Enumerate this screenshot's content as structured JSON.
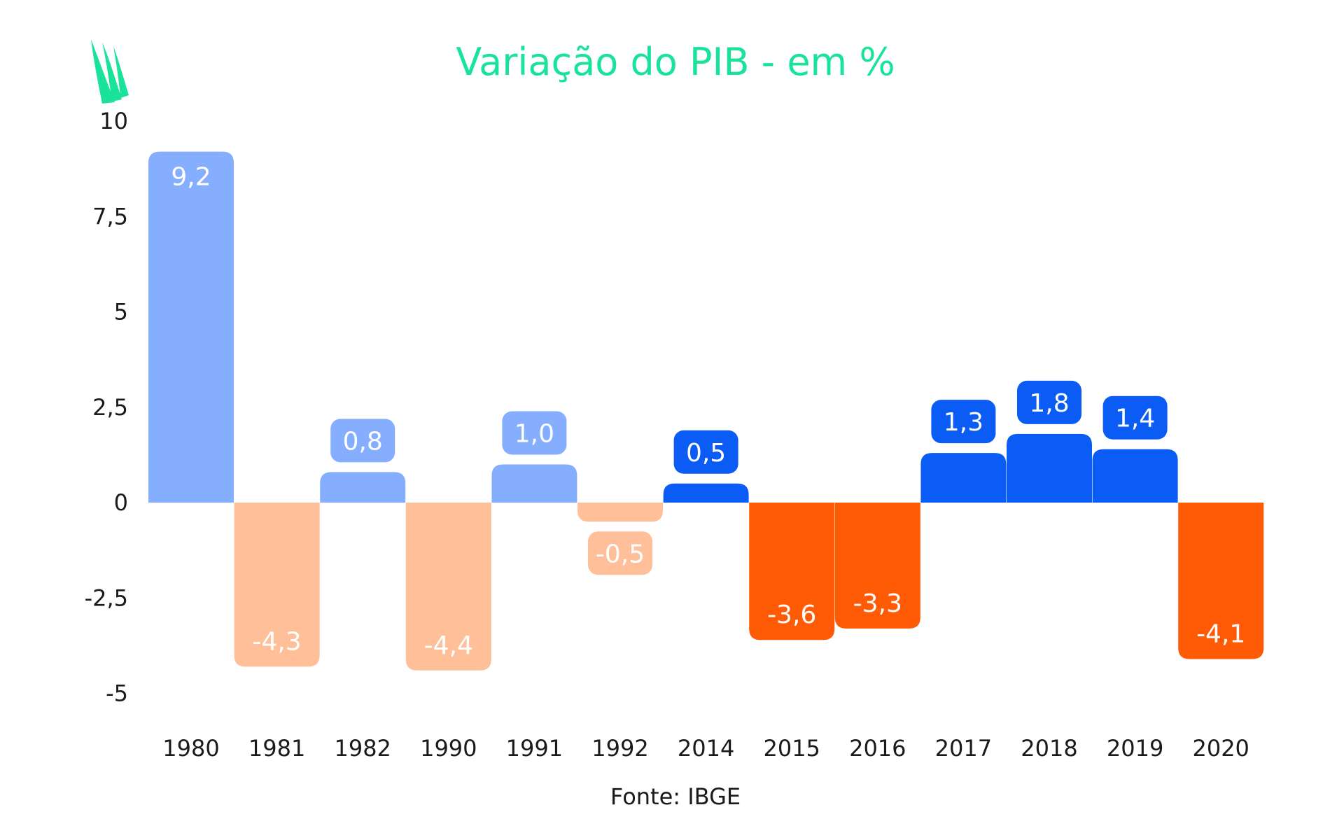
{
  "logo": {
    "icon": "green-leaf-logo-icon",
    "color": "#19e39a"
  },
  "source": "Fonte: IBGE",
  "colors": {
    "title": "#19e39a",
    "positive_early": "#85aeff",
    "negative_early": "#ffbf99",
    "positive_recent": "#0a5cf5",
    "negative_recent": "#ff5a05",
    "label_text": "#ffffff"
  },
  "chart_data": {
    "type": "bar",
    "title": "Variação do PIB - em %",
    "xlabel": "",
    "ylabel": "",
    "ylim": [
      -5,
      10
    ],
    "yticks": [
      10,
      7.5,
      5,
      2.5,
      0,
      -2.5,
      -5
    ],
    "ytick_labels": [
      "10",
      "7,5",
      "5",
      "2,5",
      "0",
      "-2,5",
      "-5"
    ],
    "categories": [
      "1980",
      "1981",
      "1982",
      "1990",
      "1991",
      "1992",
      "2014",
      "2015",
      "2016",
      "2017",
      "2018",
      "2019",
      "2020"
    ],
    "values": [
      9.2,
      -4.3,
      0.8,
      -4.4,
      1.0,
      -0.5,
      0.5,
      -3.6,
      -3.3,
      1.3,
      1.8,
      1.4,
      -4.1
    ],
    "value_labels": [
      "9,2",
      "-4,3",
      "0,8",
      "-4,4",
      "1,0",
      "-0,5",
      "0,5",
      "-3,6",
      "-3,3",
      "1,3",
      "1,8",
      "1,4",
      "-4,1"
    ],
    "period": [
      "early",
      "early",
      "early",
      "early",
      "early",
      "early",
      "recent",
      "recent",
      "recent",
      "recent",
      "recent",
      "recent",
      "recent"
    ],
    "grid": false,
    "legend": "none"
  }
}
